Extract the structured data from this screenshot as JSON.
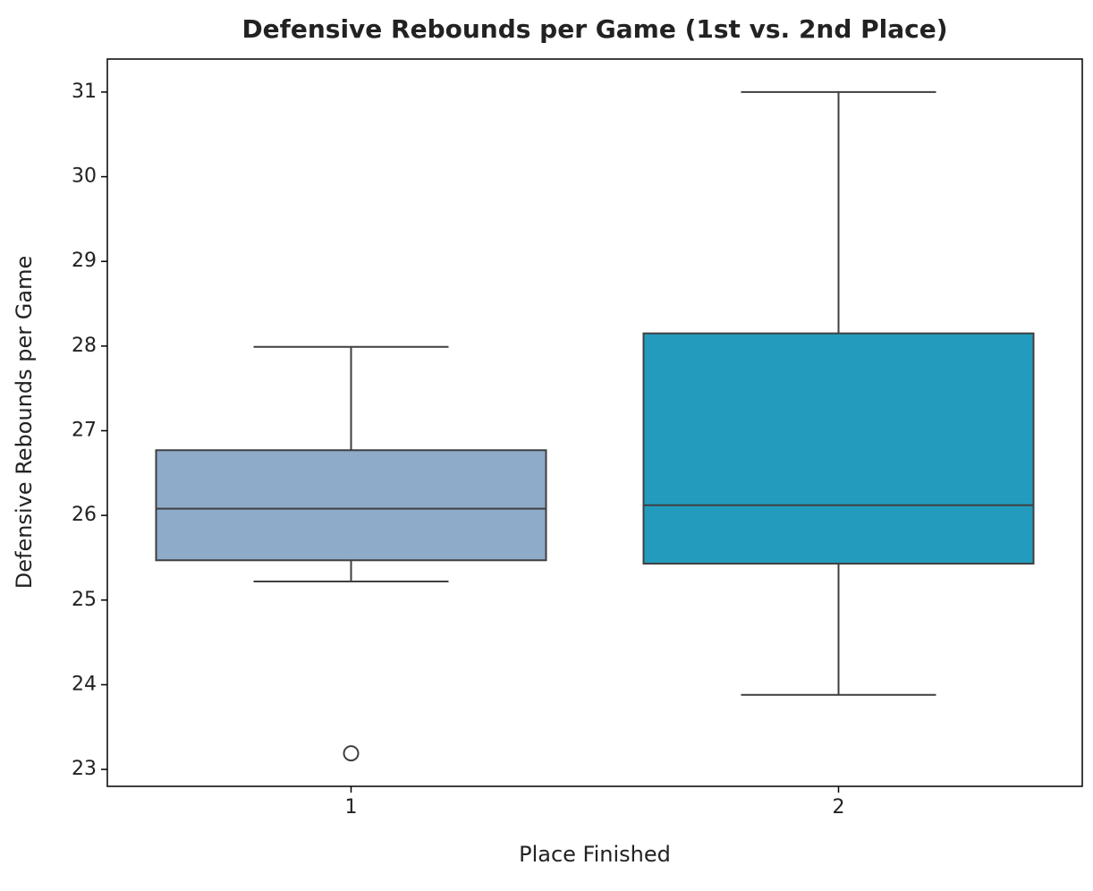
{
  "chart_data": {
    "type": "box",
    "title": "Defensive Rebounds per Game (1st vs. 2nd Place)",
    "x_label": "Place Finished",
    "y_label": "Defensive Rebounds per Game",
    "categories": [
      "1",
      "2"
    ],
    "colors": [
      "#8eabc9",
      "#239bbd"
    ],
    "boxes": [
      {
        "whisker_low": 25.22,
        "q1": 25.47,
        "median": 26.08,
        "q3": 26.77,
        "whisker_high": 27.99,
        "outliers": [
          23.19
        ]
      },
      {
        "whisker_low": 23.88,
        "q1": 25.43,
        "median": 26.12,
        "q3": 28.15,
        "whisker_high": 31.0,
        "outliers": []
      }
    ],
    "ylim": [
      22.8,
      31.39
    ],
    "yticks": [
      23,
      24,
      25,
      26,
      27,
      28,
      29,
      30,
      31
    ]
  }
}
